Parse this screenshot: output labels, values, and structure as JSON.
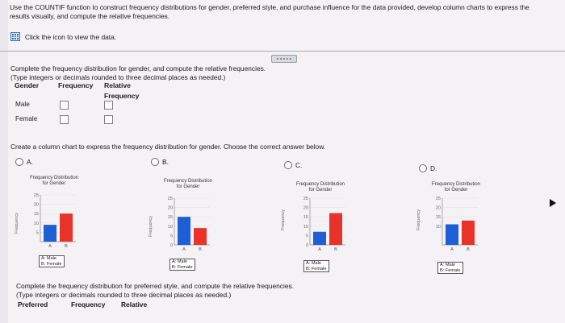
{
  "intro_text": "Use the COUNTIF function to construct frequency distributions for gender, preferred style, and purchase influence for the data provided, develop column charts to express the results visually, and compute the relative frequencies.",
  "view_data_label": "Click the icon to view the data.",
  "question1": {
    "prompt": "Complete the frequency distribution for gender, and compute the relative frequencies.",
    "hint": "(Type integers or decimals rounded to three decimal places as needed.)",
    "headers": {
      "gender": "Gender",
      "frequency": "Frequency",
      "relative": "Relative",
      "relative2": "Frequency"
    },
    "rows": [
      {
        "label": "Male"
      },
      {
        "label": "Female"
      }
    ]
  },
  "question2": {
    "prompt": "Create a column chart to express the frequency distribution for gender. Choose the correct answer below.",
    "options": [
      "A.",
      "B.",
      "C.",
      "D."
    ]
  },
  "chart_common": {
    "title_line1": "Frequency Distribution",
    "title_line2": "for Gender",
    "ylabel": "Frequency",
    "legend_a": "A: Male",
    "legend_b": "B: Female",
    "cat_a": "A",
    "cat_b": "B",
    "male_color": "#1f5fd6",
    "female_color": "#e8322a"
  },
  "chart_data": [
    {
      "type": "bar",
      "option": "A",
      "categories": [
        "A",
        "B"
      ],
      "values": [
        9,
        15
      ],
      "ylim": [
        0,
        25
      ],
      "yticks": [
        "25",
        "20",
        "15",
        "10",
        "5"
      ]
    },
    {
      "type": "bar",
      "option": "B",
      "categories": [
        "A",
        "B"
      ],
      "values": [
        15,
        9
      ],
      "ylim": [
        0,
        25
      ],
      "yticks": [
        "25",
        "20",
        "15",
        "10",
        "5",
        "0"
      ]
    },
    {
      "type": "bar",
      "option": "C",
      "categories": [
        "A",
        "B"
      ],
      "values": [
        7,
        17
      ],
      "ylim": [
        0,
        25
      ],
      "yticks": [
        "25",
        "20",
        "15",
        "10",
        "5",
        "0"
      ]
    },
    {
      "type": "bar",
      "option": "D",
      "categories": [
        "A",
        "B"
      ],
      "values": [
        11,
        13
      ],
      "ylim": [
        0,
        25
      ],
      "yticks": [
        "25",
        "20",
        "15",
        "10"
      ]
    }
  ],
  "question3": {
    "prompt": "Complete the frequency distribution for preferred style, and compute the relative frequencies.",
    "hint": "(Type integers or decimals rounded to three decimal places as needed.)",
    "headers": {
      "preferred": "Preferred",
      "frequency": "Frequency",
      "relative": "Relative"
    }
  }
}
